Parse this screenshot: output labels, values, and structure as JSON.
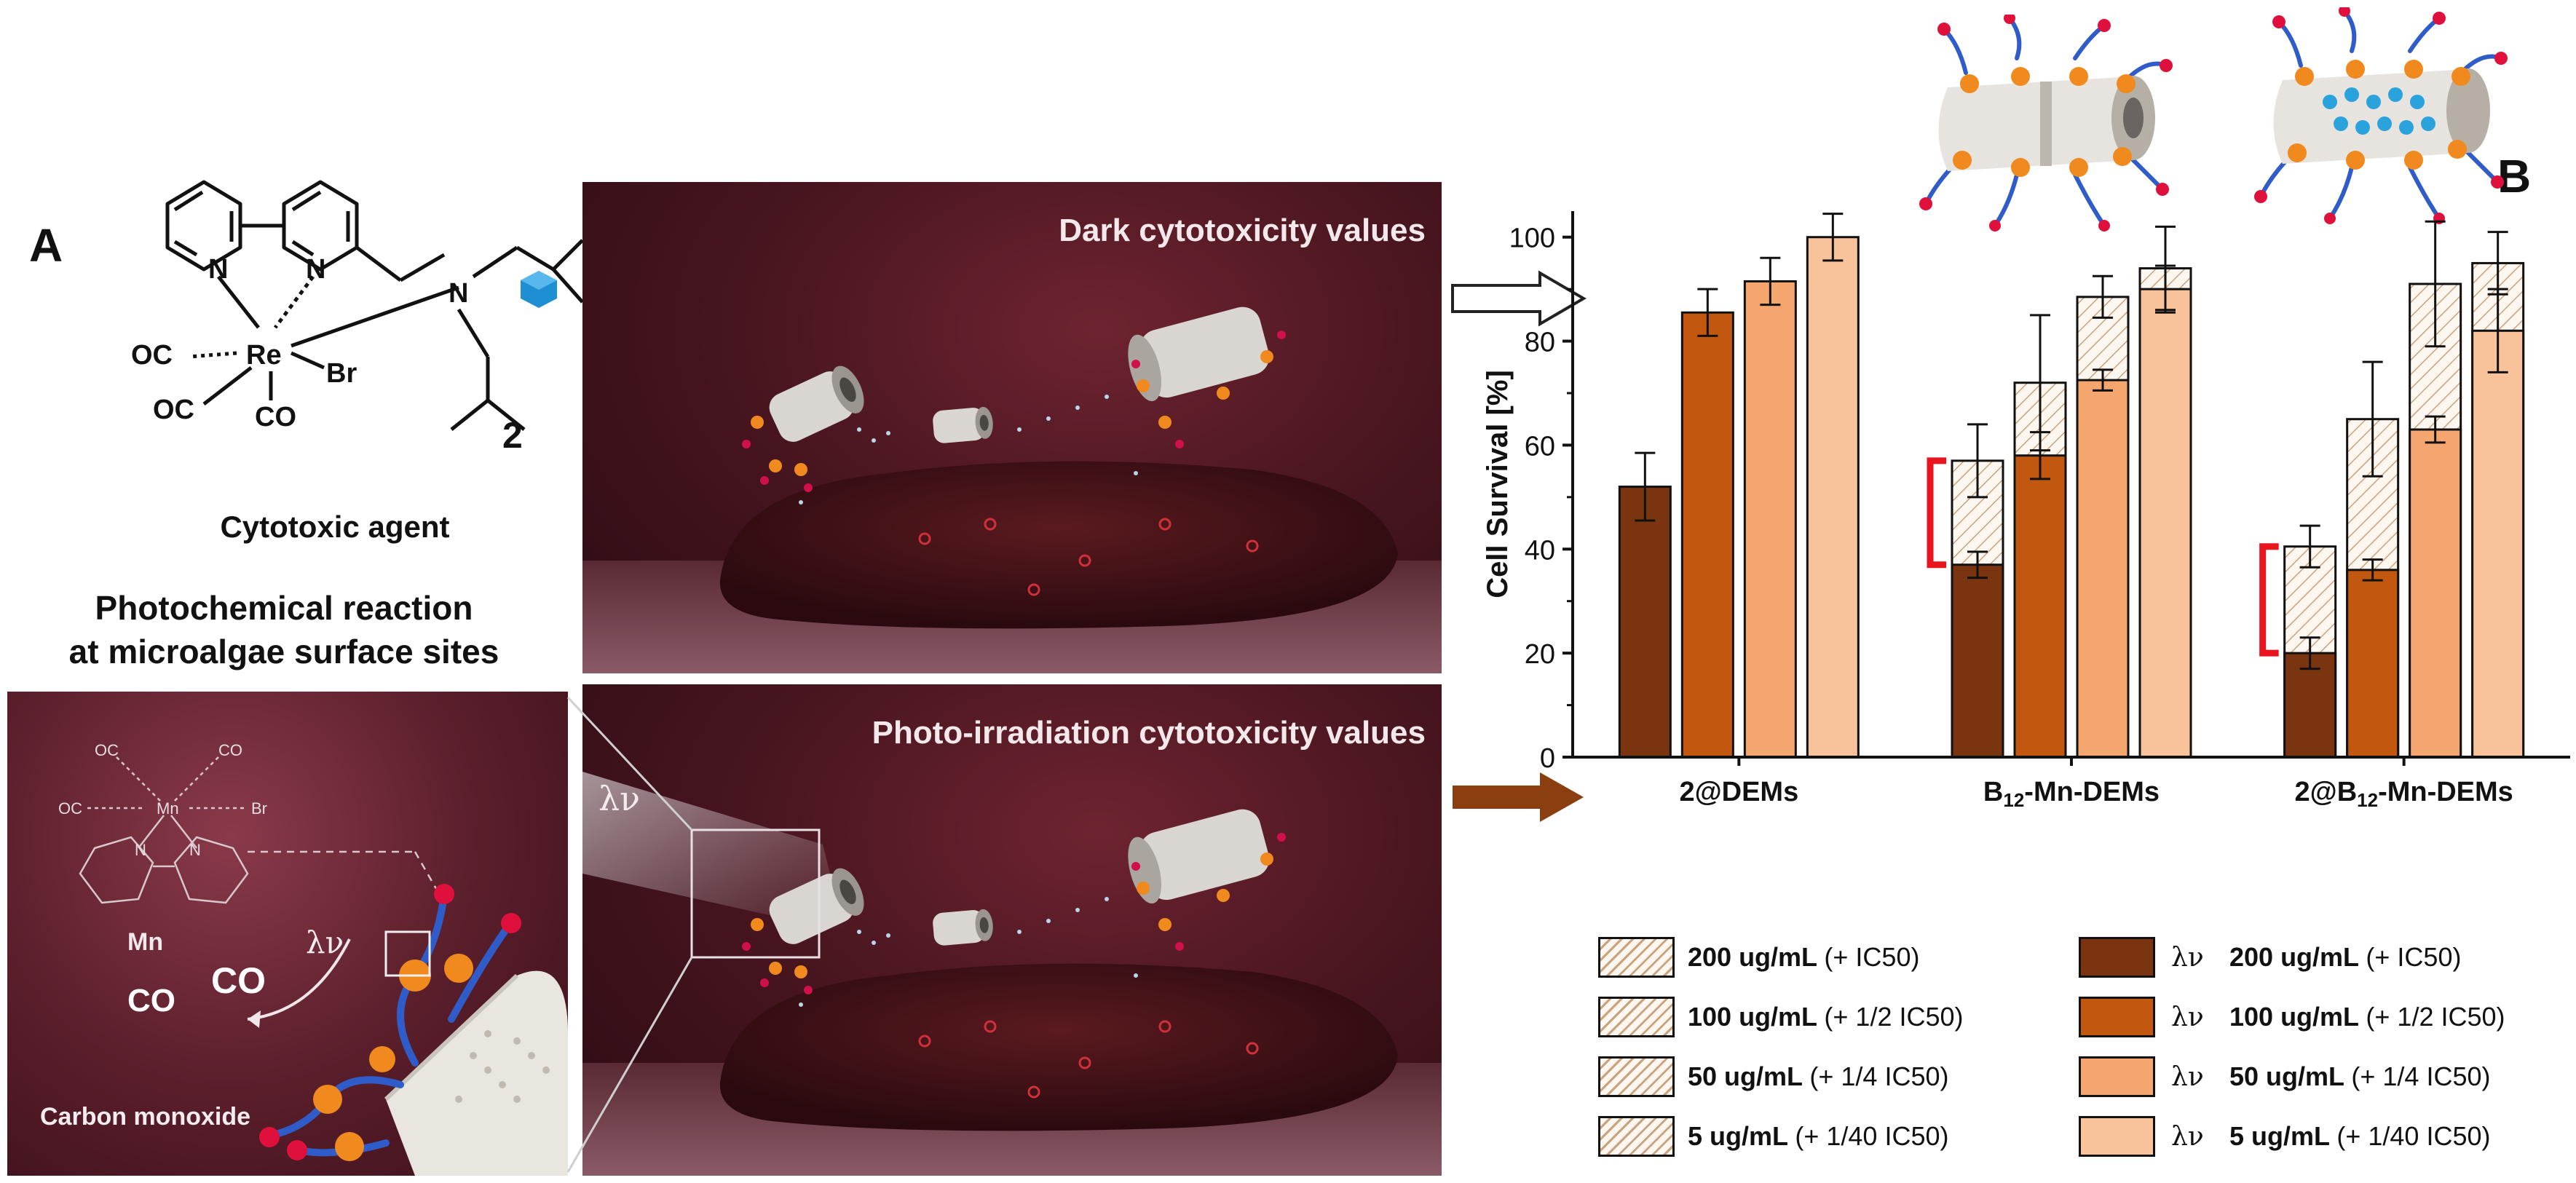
{
  "panel_a": {
    "letter": "A",
    "molecule": {
      "atoms": [
        "N",
        "N",
        "N",
        "Re",
        "Br",
        "OC",
        "OC",
        "CO"
      ],
      "compound_number": "2",
      "label": "Cytotoxic agent"
    },
    "photochem_title_line1": "Photochemical reaction",
    "photochem_title_line2": "at microalgae surface sites",
    "inset": {
      "atoms": [
        "OC",
        "CO",
        "OC",
        "Mn",
        "Br",
        "N",
        "N"
      ],
      "metal_label": "Mn",
      "co_large_1": "CO",
      "co_large_2": "CO",
      "light_symbol": "λν",
      "caption": "Carbon monoxide"
    }
  },
  "scenes": {
    "dark_title": "Dark cytotoxicity values",
    "photo_title": "Photo-irradiation cytotoxicity values",
    "light_symbol": "λν"
  },
  "panel_b": {
    "letter": "B"
  },
  "chart_data": {
    "type": "bar",
    "ylabel": "Cell Survival [%]",
    "ylim": [
      0,
      105
    ],
    "yticks": [
      "0",
      "20",
      "40",
      "60",
      "80",
      "100"
    ],
    "categories": [
      "2@DEMs",
      "B12-Mn-DEMs",
      "2@B12-Mn-DEMs"
    ],
    "category_display": [
      {
        "base": "2@DEMs",
        "sub": "",
        "rest": ""
      },
      {
        "base": "B",
        "sub": "12",
        "rest": "-Mn-DEMs"
      },
      {
        "base": "2@B",
        "sub": "12",
        "rest": "-Mn-DEMs"
      }
    ],
    "series": [
      {
        "name": "200 ug/mL (+ IC50)",
        "light_name": "λν 200 ug/mL (+ IC50)",
        "dark": [
          null,
          57,
          40.5
        ],
        "light": [
          52,
          37,
          20
        ],
        "dark_err": [
          null,
          7,
          4
        ],
        "light_err": [
          6.5,
          2.5,
          3
        ],
        "color": "#7a3510"
      },
      {
        "name": "100 ug/mL (+ 1/2 IC50)",
        "light_name": "λν 100 ug/mL (+ 1/2 IC50)",
        "dark": [
          null,
          72,
          65
        ],
        "light": [
          85.5,
          58,
          36
        ],
        "dark_err": [
          null,
          13,
          11
        ],
        "light_err": [
          4.5,
          4.5,
          2
        ],
        "color": "#c2570f"
      },
      {
        "name": "50 ug/mL (+ 1/4 IC50)",
        "light_name": "λν 50 ug/mL (+ 1/4 IC50)",
        "dark": [
          null,
          88.5,
          91
        ],
        "light": [
          91.5,
          72.5,
          63
        ],
        "dark_err": [
          null,
          4,
          12
        ],
        "light_err": [
          4.5,
          2,
          2.5
        ],
        "color": "#f5a56e"
      },
      {
        "name": "5 ug/mL (+ 1/40 IC50)",
        "light_name": "λν 5 ug/mL (+ 1/40 IC50)",
        "dark": [
          null,
          94,
          95
        ],
        "light": [
          100,
          90,
          82
        ],
        "dark_err": [
          null,
          8,
          6
        ],
        "light_err": [
          4.5,
          4.5,
          8
        ],
        "color": "#f8c39a"
      }
    ],
    "legend": {
      "light_symbol": "λν",
      "dark_entries": [
        {
          "value": "200 ug/mL",
          "note": "(+ IC50)"
        },
        {
          "value": "100 ug/mL",
          "note": "(+ 1/2 IC50)"
        },
        {
          "value": "50 ug/mL",
          "note": "(+ 1/4 IC50)"
        },
        {
          "value": "5 ug/mL",
          "note": "(+ 1/40 IC50)"
        }
      ],
      "light_entries": [
        {
          "value": "200 ug/mL",
          "note": "(+ IC50)"
        },
        {
          "value": "100 ug/mL",
          "note": "(+ 1/2 IC50)"
        },
        {
          "value": "50 ug/mL",
          "note": "(+ 1/4 IC50)"
        },
        {
          "value": "5 ug/mL",
          "note": "(+ 1/40 IC50)"
        }
      ]
    }
  }
}
